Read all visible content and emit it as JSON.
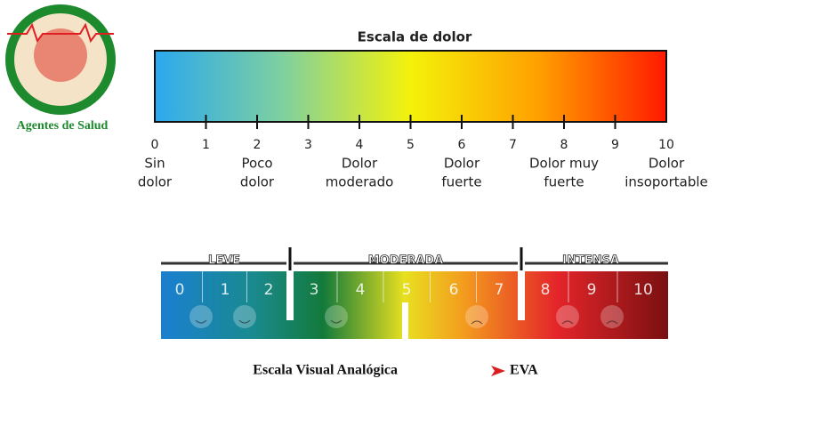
{
  "logo": {
    "caption": "Agentes de Salud"
  },
  "scale1": {
    "title": "Escala de dolor",
    "ticks": [
      0,
      1,
      2,
      3,
      4,
      5,
      6,
      7,
      8,
      9,
      10
    ],
    "labels": [
      {
        "at": 0,
        "lines": [
          "Sin",
          "dolor"
        ]
      },
      {
        "at": 2,
        "lines": [
          "Poco",
          "dolor"
        ]
      },
      {
        "at": 4,
        "lines": [
          "Dolor",
          "moderado"
        ]
      },
      {
        "at": 6,
        "lines": [
          "Dolor",
          "fuerte"
        ]
      },
      {
        "at": 8,
        "lines": [
          "Dolor muy",
          "fuerte"
        ]
      },
      {
        "at": 10,
        "lines": [
          "Dolor",
          "insoportable"
        ]
      }
    ]
  },
  "scale2": {
    "sections": [
      "LEVE",
      "MODERADA",
      "INTENSA"
    ],
    "numbers": [
      0,
      1,
      2,
      3,
      4,
      5,
      6,
      7,
      8,
      9,
      10
    ],
    "caption": "Escala Visual Analógica",
    "caption_suffix": "EVA"
  }
}
